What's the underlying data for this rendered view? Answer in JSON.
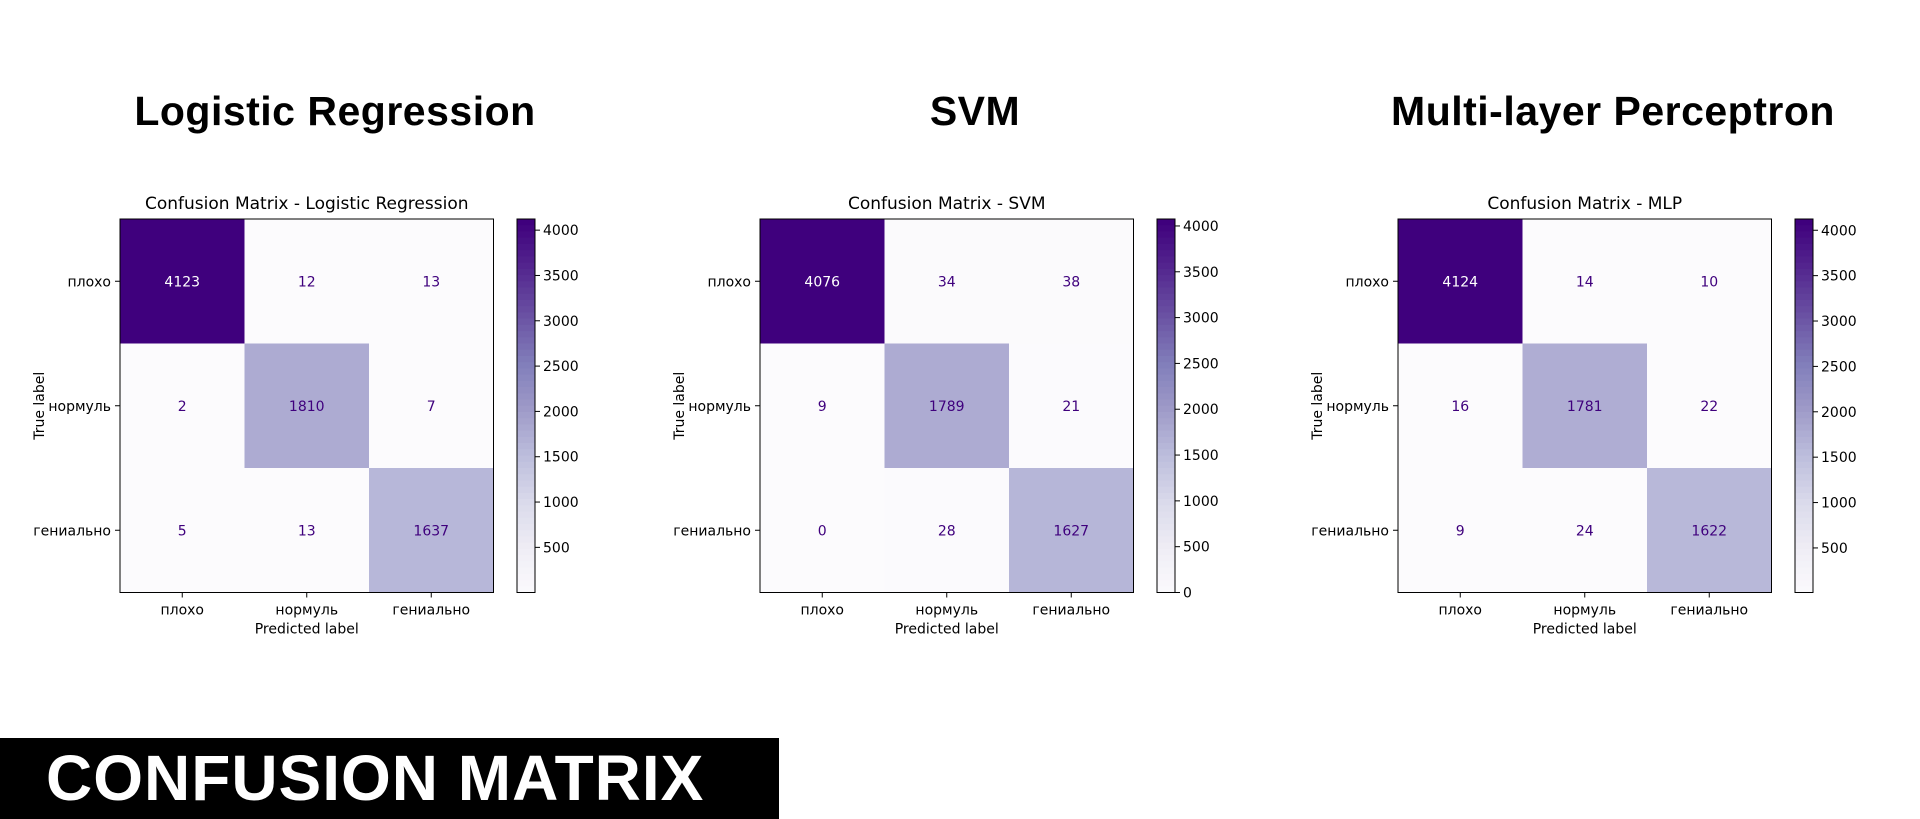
{
  "footer": {
    "banner": "CONFUSION MATRIX"
  },
  "panels": [
    {
      "heading": "Logistic Regression"
    },
    {
      "heading": "SVM"
    },
    {
      "heading": "Multi-layer Perceptron"
    }
  ],
  "colors": {
    "min": "#fcfbfd",
    "max": "#3f007d",
    "text_dark": "#3f007d",
    "text_light": "#ffffff"
  },
  "chart_data": [
    {
      "type": "heatmap",
      "title": "Confusion Matrix - Logistic Regression",
      "xlabel": "Predicted label",
      "ylabel": "True label",
      "categories": [
        "плохо",
        "нормуль",
        "гениально"
      ],
      "values": [
        [
          4123,
          12,
          13
        ],
        [
          2,
          1810,
          7
        ],
        [
          5,
          13,
          1637
        ]
      ],
      "colormap": "Purples",
      "colorbar_ticks": [
        500,
        1000,
        1500,
        2000,
        2500,
        3000,
        3500,
        4000
      ],
      "colorbar_range": [
        2,
        4123
      ]
    },
    {
      "type": "heatmap",
      "title": "Confusion Matrix - SVM",
      "xlabel": "Predicted label",
      "ylabel": "True label",
      "categories": [
        "плохо",
        "нормуль",
        "гениально"
      ],
      "values": [
        [
          4076,
          34,
          38
        ],
        [
          9,
          1789,
          21
        ],
        [
          0,
          28,
          1627
        ]
      ],
      "colormap": "Purples",
      "colorbar_ticks": [
        0,
        500,
        1000,
        1500,
        2000,
        2500,
        3000,
        3500,
        4000
      ],
      "colorbar_range": [
        0,
        4076
      ]
    },
    {
      "type": "heatmap",
      "title": "Confusion Matrix - MLP",
      "xlabel": "Predicted label",
      "ylabel": "True label",
      "categories": [
        "плохо",
        "нормуль",
        "гениально"
      ],
      "values": [
        [
          4124,
          14,
          10
        ],
        [
          16,
          1781,
          22
        ],
        [
          9,
          24,
          1622
        ]
      ],
      "colormap": "Purples",
      "colorbar_ticks": [
        500,
        1000,
        1500,
        2000,
        2500,
        3000,
        3500,
        4000
      ],
      "colorbar_range": [
        9,
        4124
      ]
    }
  ]
}
